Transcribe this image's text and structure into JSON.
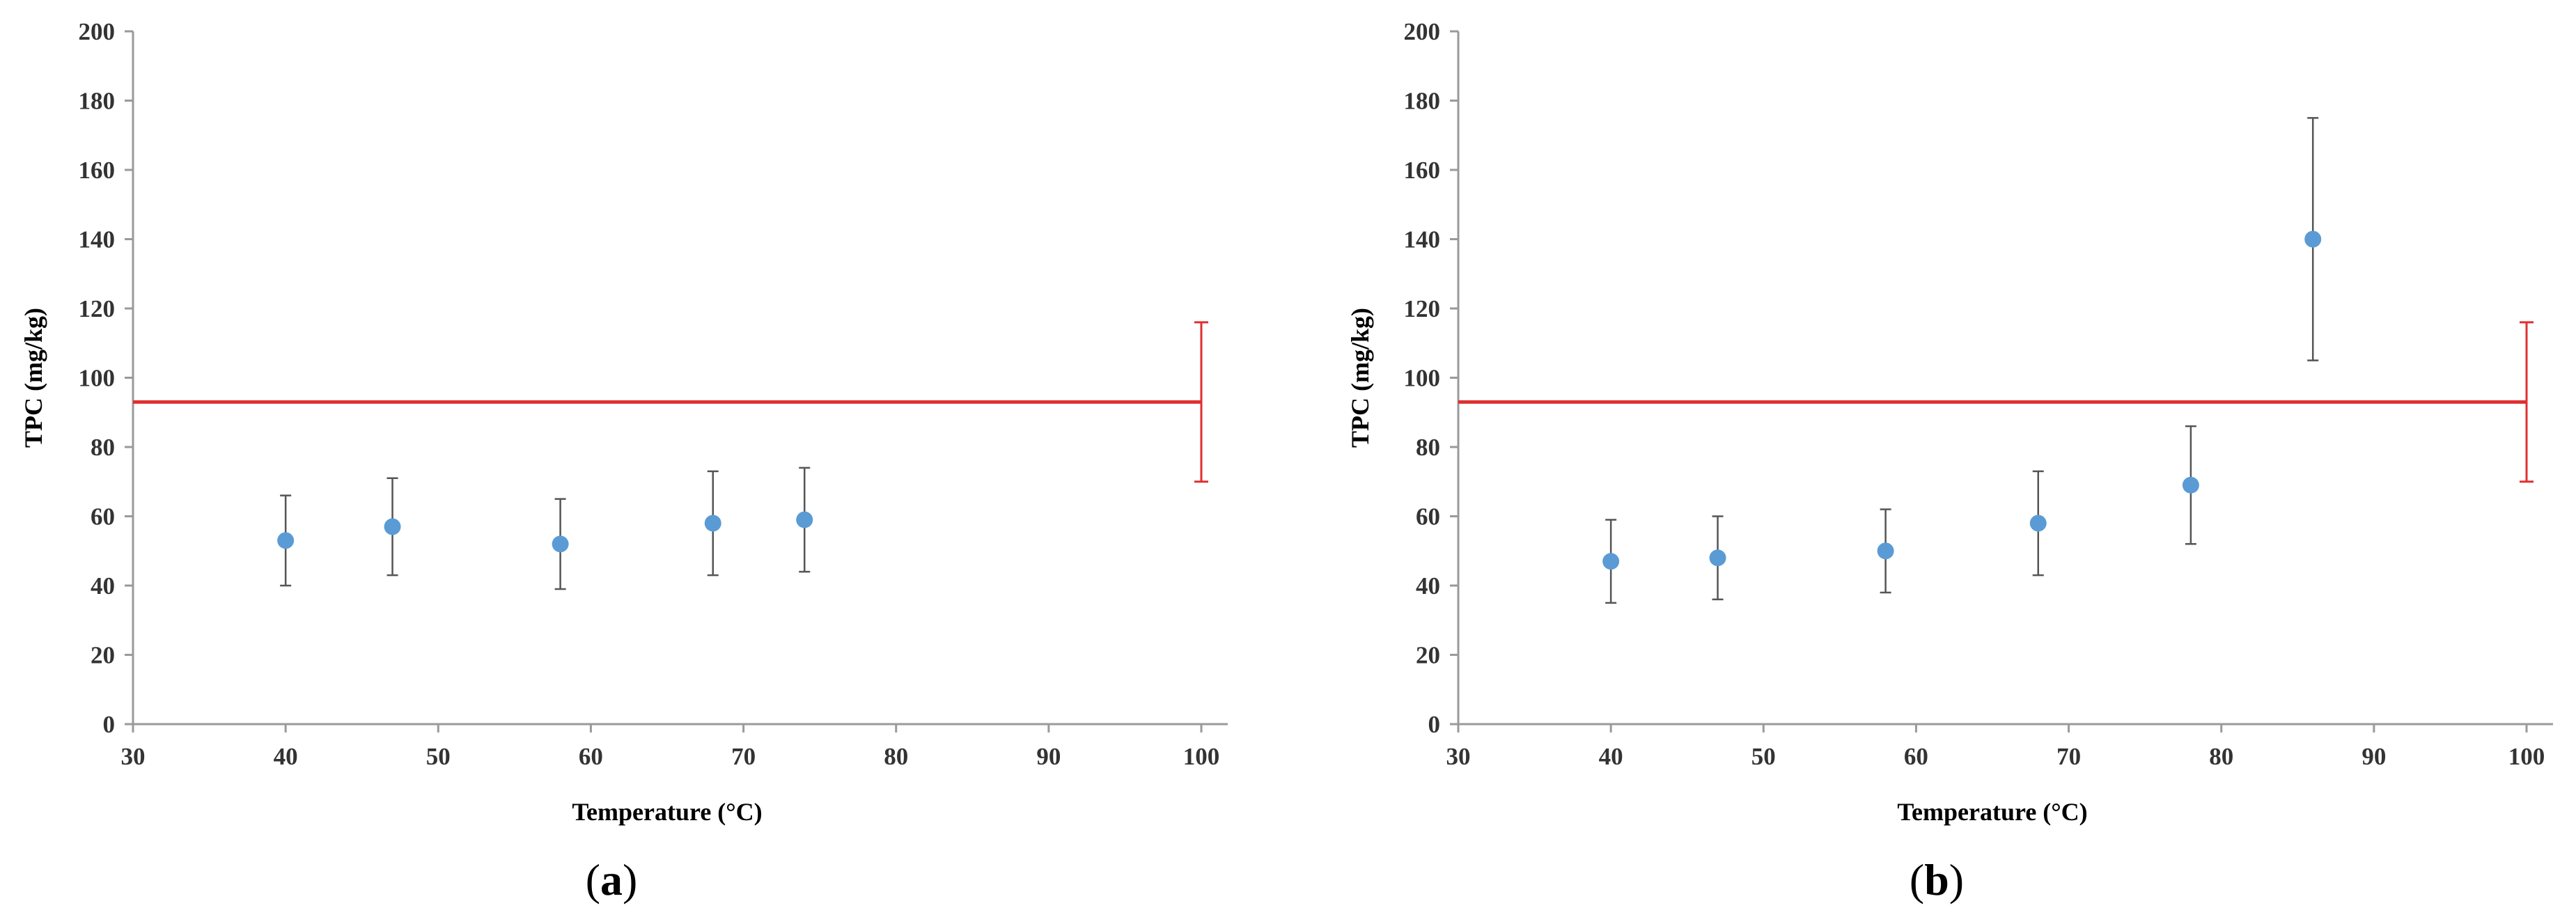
{
  "colors": {
    "point": "#5b9bd5",
    "error_bar": "#555555",
    "reference": "#e03030",
    "axis": "#9a9a9a"
  },
  "chart_data": [
    {
      "type": "scatter",
      "panel_label": "a",
      "xlabel": "Temperature (°C)",
      "ylabel": "TPC (mg/kg)",
      "xlim": [
        30,
        100
      ],
      "ylim": [
        0,
        200
      ],
      "xticks": [
        30,
        40,
        50,
        60,
        70,
        80,
        90,
        100
      ],
      "yticks": [
        0,
        20,
        40,
        60,
        80,
        100,
        120,
        140,
        160,
        180,
        200
      ],
      "grid": false,
      "series": [
        {
          "x": [
            40,
            47,
            58,
            68,
            74
          ],
          "y": [
            53,
            57,
            52,
            58,
            59
          ],
          "error_low": [
            40,
            43,
            39,
            43,
            44
          ],
          "error_high": [
            66,
            71,
            65,
            73,
            74
          ]
        }
      ],
      "reference": {
        "y": 93,
        "x_end": 100,
        "error_low": 70,
        "error_high": 116
      }
    },
    {
      "type": "scatter",
      "panel_label": "b",
      "xlabel": "Temperature (°C)",
      "ylabel": "TPC (mg/kg)",
      "xlim": [
        30,
        100
      ],
      "ylim": [
        0,
        200
      ],
      "xticks": [
        30,
        40,
        50,
        60,
        70,
        80,
        90,
        100
      ],
      "yticks": [
        0,
        20,
        40,
        60,
        80,
        100,
        120,
        140,
        160,
        180,
        200
      ],
      "grid": false,
      "series": [
        {
          "x": [
            40,
            47,
            58,
            68,
            78,
            86
          ],
          "y": [
            47,
            48,
            50,
            58,
            69,
            140
          ],
          "error_low": [
            35,
            36,
            38,
            43,
            52,
            105
          ],
          "error_high": [
            59,
            60,
            62,
            73,
            86,
            175
          ]
        }
      ],
      "reference": {
        "y": 93,
        "x_end": 100,
        "error_low": 70,
        "error_high": 116
      }
    }
  ]
}
